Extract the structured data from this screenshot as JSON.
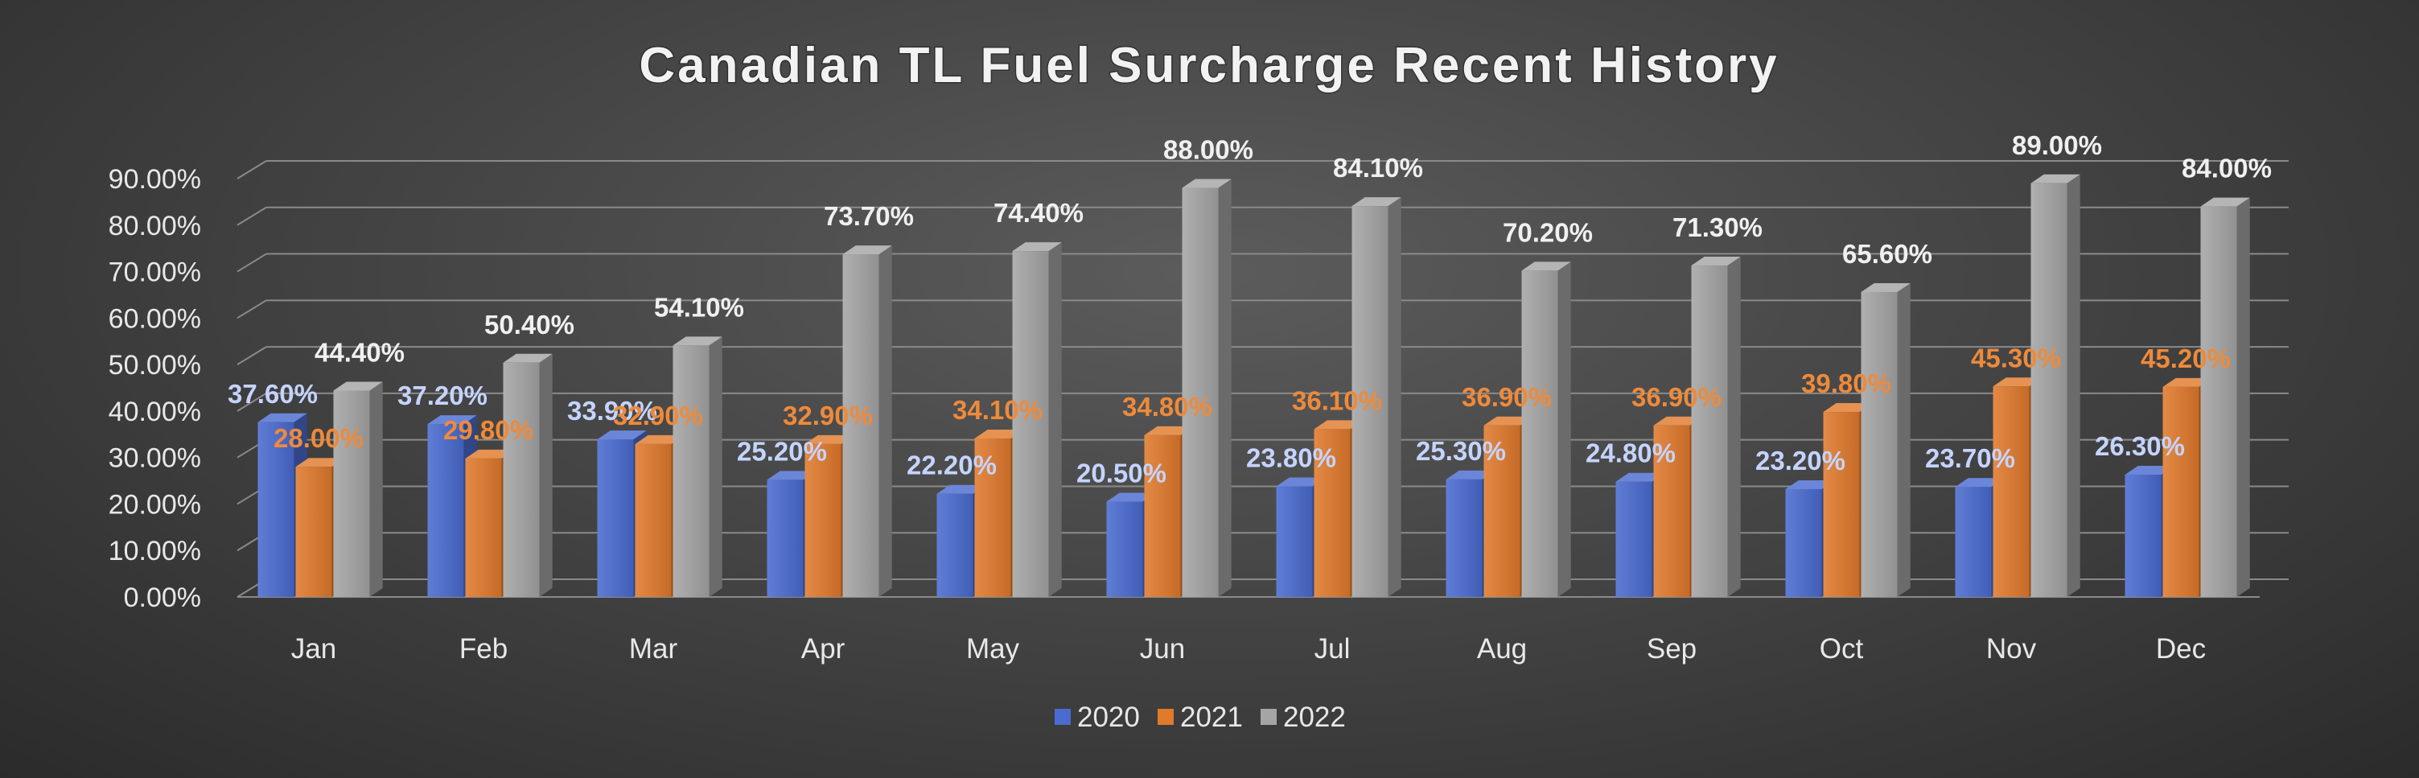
{
  "chart_data": {
    "type": "bar",
    "title": "Canadian TL Fuel Surcharge Recent History",
    "xlabel": "",
    "ylabel": "",
    "ylim": [
      0,
      90
    ],
    "yticks": [
      "0.00%",
      "10.00%",
      "20.00%",
      "30.00%",
      "40.00%",
      "50.00%",
      "60.00%",
      "70.00%",
      "80.00%",
      "90.00%"
    ],
    "grid": true,
    "style": "3d-clustered-column",
    "legend_position": "bottom",
    "categories": [
      "Jan",
      "Feb",
      "Mar",
      "Apr",
      "May",
      "Jun",
      "Jul",
      "Aug",
      "Sep",
      "Oct",
      "Nov",
      "Dec"
    ],
    "series": [
      {
        "name": "2020",
        "color": "#4a6bd0",
        "label_color": "#c5d4ff",
        "values": [
          37.6,
          37.2,
          33.9,
          25.2,
          22.2,
          20.5,
          23.8,
          25.3,
          24.8,
          23.2,
          23.7,
          26.3
        ],
        "labels": [
          "37.60%",
          "37.20%",
          "33.90%",
          "25.20%",
          "22.20%",
          "20.50%",
          "23.80%",
          "25.30%",
          "24.80%",
          "23.20%",
          "23.70%",
          "26.30%"
        ]
      },
      {
        "name": "2021",
        "color": "#e07a2c",
        "label_color": "#ee8a3a",
        "values": [
          28.0,
          29.8,
          32.9,
          32.9,
          34.1,
          34.8,
          36.1,
          36.9,
          36.9,
          39.8,
          45.3,
          45.2
        ],
        "labels": [
          "28.00%",
          "29.80%",
          "32.90%",
          "32.90%",
          "34.10%",
          "34.80%",
          "36.10%",
          "36.90%",
          "36.90%",
          "39.80%",
          "45.30%",
          "45.20%"
        ]
      },
      {
        "name": "2022",
        "color": "#a5a5a5",
        "label_color": "#f0f0f0",
        "values": [
          44.4,
          50.4,
          54.1,
          73.7,
          74.4,
          88.0,
          84.1,
          70.2,
          71.3,
          65.6,
          89.0,
          84.0
        ],
        "labels": [
          "44.40%",
          "50.40%",
          "54.10%",
          "73.70%",
          "74.40%",
          "88.00%",
          "84.10%",
          "70.20%",
          "71.30%",
          "65.60%",
          "89.00%",
          "84.00%"
        ]
      }
    ]
  }
}
